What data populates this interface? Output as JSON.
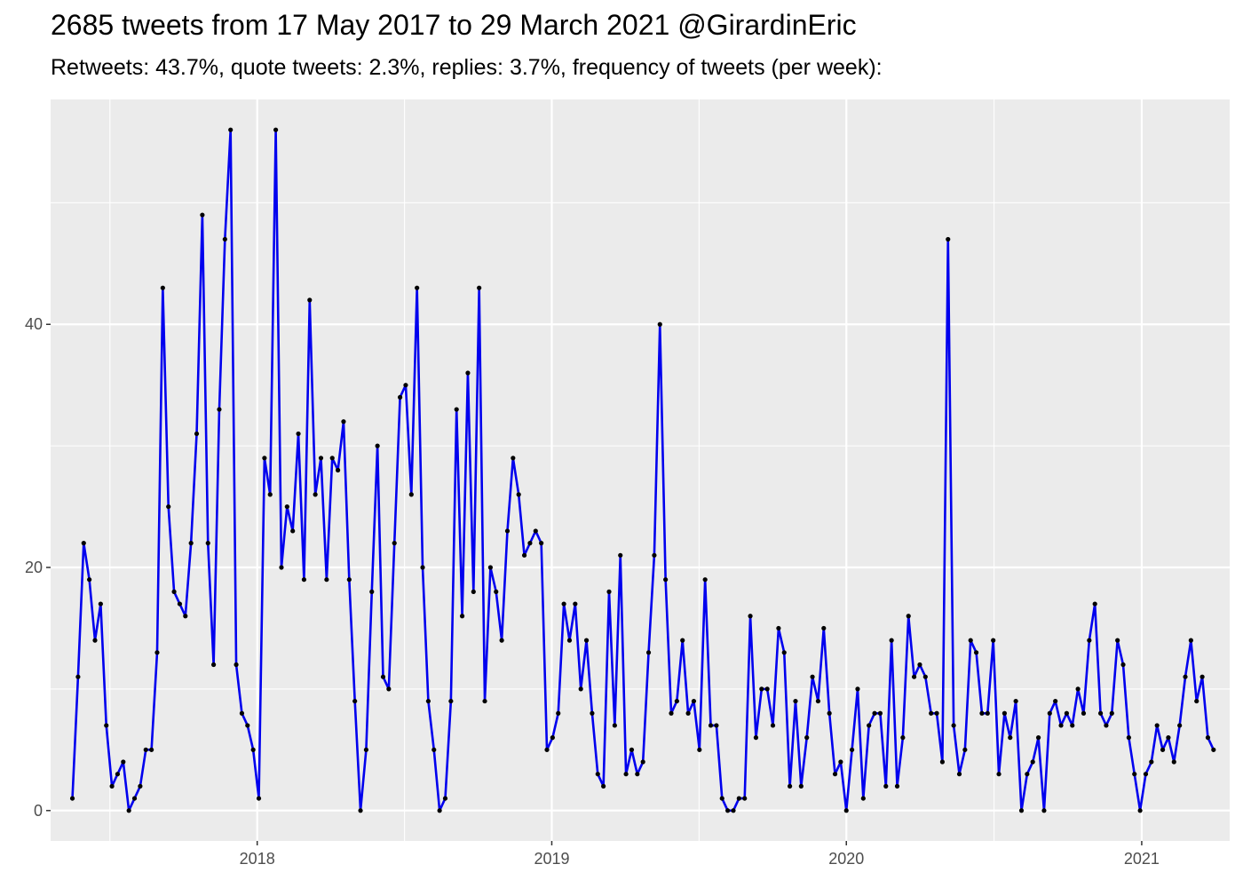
{
  "title": "2685 tweets from 17 May 2017 to 29 March 2021 @GirardinEric",
  "subtitle": "Retweets: 43.7%, quote tweets: 2.3%, replies: 3.7%, frequency of tweets (per week):",
  "colors": {
    "panel_background": "#ebebeb",
    "grid": "#ffffff",
    "line": "#0000ee",
    "point": "#000000",
    "tick_text": "#4d4d4d"
  },
  "chart_data": {
    "type": "line",
    "grid": true,
    "legend": "none",
    "xlim": [
      "2017-04-20",
      "2021-04-20"
    ],
    "ylim": [
      -2.5,
      58.5
    ],
    "x_ticks": [
      "2018-01-01",
      "2019-01-01",
      "2020-01-01",
      "2021-01-01"
    ],
    "x_tick_labels": [
      "2018",
      "2019",
      "2020",
      "2021"
    ],
    "y_ticks": [
      0,
      20,
      40
    ],
    "y_tick_labels": [
      "0",
      "20",
      "40"
    ],
    "series": [
      {
        "x_start": "2017-05-17",
        "x_step_days": 7,
        "values": [
          1,
          11,
          22,
          19,
          14,
          17,
          7,
          2,
          3,
          4,
          0,
          1,
          2,
          5,
          5,
          13,
          43,
          25,
          18,
          17,
          16,
          22,
          31,
          49,
          22,
          12,
          33,
          47,
          56,
          12,
          8,
          7,
          5,
          1,
          29,
          26,
          56,
          20,
          25,
          23,
          31,
          19,
          42,
          26,
          29,
          19,
          29,
          28,
          32,
          19,
          9,
          0,
          5,
          18,
          30,
          11,
          10,
          22,
          34,
          35,
          26,
          43,
          20,
          9,
          5,
          0,
          1,
          9,
          33,
          16,
          36,
          18,
          43,
          9,
          20,
          18,
          14,
          23,
          29,
          26,
          21,
          22,
          23,
          22,
          5,
          6,
          8,
          17,
          14,
          17,
          10,
          14,
          8,
          3,
          2,
          18,
          7,
          21,
          3,
          5,
          3,
          4,
          13,
          21,
          40,
          19,
          8,
          9,
          14,
          8,
          9,
          5,
          19,
          7,
          7,
          1,
          0,
          0,
          1,
          1,
          16,
          6,
          10,
          10,
          7,
          15,
          13,
          2,
          9,
          2,
          6,
          11,
          9,
          15,
          8,
          3,
          4,
          0,
          5,
          10,
          1,
          7,
          8,
          8,
          2,
          14,
          2,
          6,
          16,
          11,
          12,
          11,
          8,
          8,
          4,
          47,
          7,
          3,
          5,
          14,
          13,
          8,
          8,
          14,
          3,
          8,
          6,
          9,
          0,
          3,
          4,
          6,
          0,
          8,
          9,
          7,
          8,
          7,
          10,
          8,
          14,
          17,
          8,
          7,
          8,
          14,
          12,
          6,
          3,
          0,
          3,
          4,
          7,
          5,
          6,
          4,
          7,
          11,
          14,
          9,
          11,
          6,
          5
        ]
      }
    ]
  }
}
